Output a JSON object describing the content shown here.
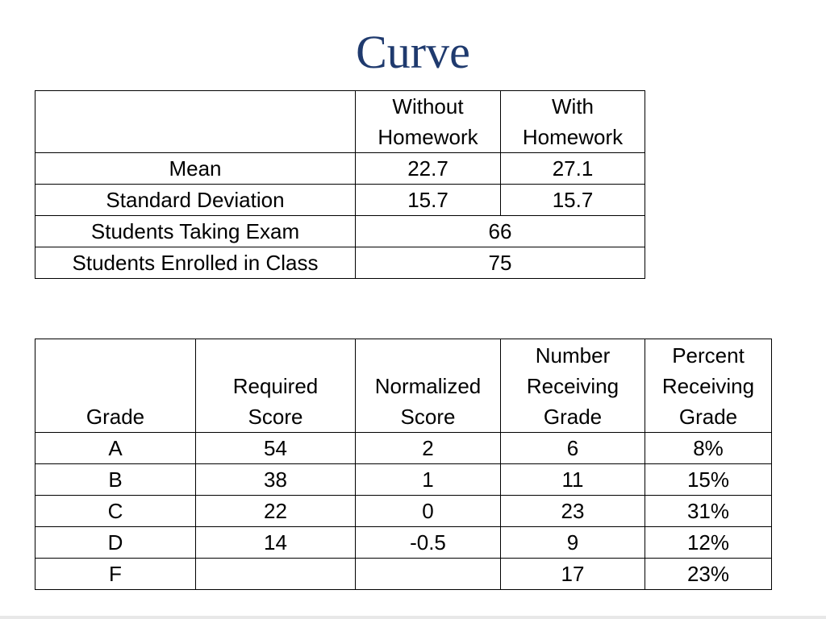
{
  "title": "Curve",
  "stats_table": {
    "header": {
      "col1_line1": "Without",
      "col1_line2": "Homework",
      "col2_line1": "With",
      "col2_line2": "Homework"
    },
    "rows": [
      {
        "label": "Mean",
        "without": "22.7",
        "with": "27.1"
      },
      {
        "label": "Standard Deviation",
        "without": "15.7",
        "with": "15.7"
      }
    ],
    "merged_rows": [
      {
        "label": "Students Taking Exam",
        "value": "66"
      },
      {
        "label": "Students Enrolled in Class",
        "value": "75"
      }
    ]
  },
  "grades_table": {
    "header": {
      "grade": [
        "Grade"
      ],
      "required": [
        "Required",
        "Score"
      ],
      "normalized": [
        "Normalized",
        "Score"
      ],
      "number": [
        "Number",
        "Receiving",
        "Grade"
      ],
      "percent": [
        "Percent",
        "Receiving",
        "Grade"
      ]
    },
    "rows": [
      {
        "grade": "A",
        "required": "54",
        "normalized": "2",
        "number": "6",
        "percent": "8%"
      },
      {
        "grade": "B",
        "required": "38",
        "normalized": "1",
        "number": "11",
        "percent": "15%"
      },
      {
        "grade": "C",
        "required": "22",
        "normalized": "0",
        "number": "23",
        "percent": "31%"
      },
      {
        "grade": "D",
        "required": "14",
        "normalized": "-0.5",
        "number": "9",
        "percent": "12%"
      },
      {
        "grade": "F",
        "required": "",
        "normalized": "",
        "number": "17",
        "percent": "23%"
      }
    ]
  }
}
